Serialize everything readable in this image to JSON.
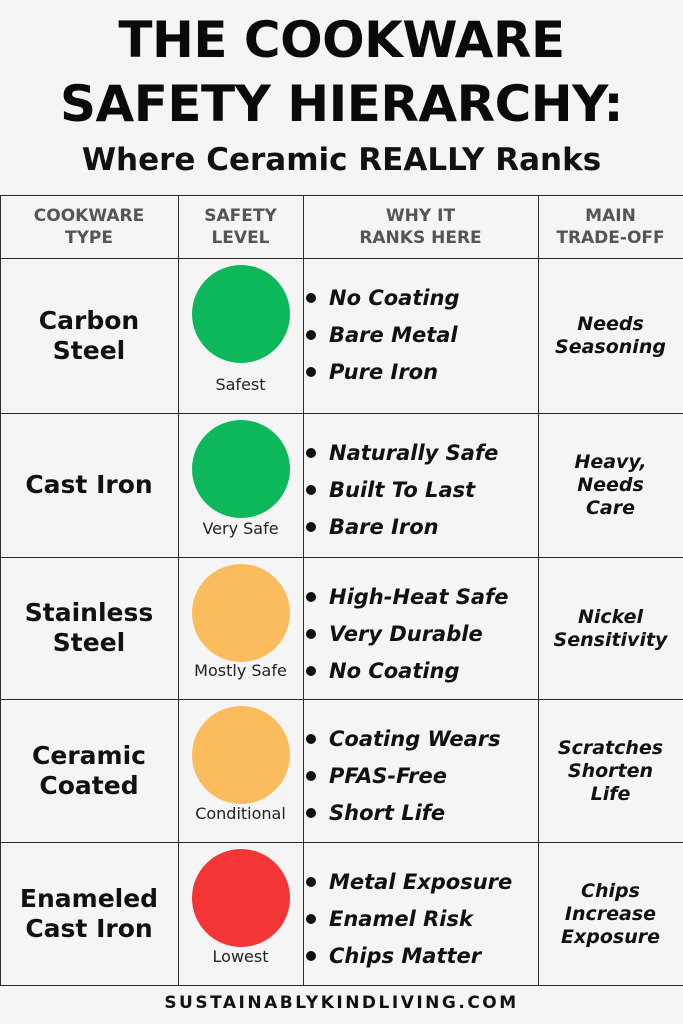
{
  "title": [
    "THE COOKWARE",
    "SAFETY HIERARCHY:"
  ],
  "subtitle": "Where Ceramic REALLY Ranks",
  "table": {
    "headers": [
      [
        "COOKWARE",
        "TYPE"
      ],
      [
        "SAFETY",
        "LEVEL"
      ],
      [
        "WHY IT",
        "RANKS HERE"
      ],
      [
        "MAIN",
        "TRADE-OFF"
      ]
    ],
    "rows": [
      {
        "type": [
          "Carbon",
          "Steel"
        ],
        "level": "Safest",
        "color": "#0db85b",
        "reasons": [
          "No Coating",
          "Bare Metal",
          "Pure Iron"
        ],
        "tradeoff": [
          "Needs",
          "Seasoning"
        ]
      },
      {
        "type": [
          "Cast Iron"
        ],
        "level": "Very Safe",
        "color": "#0db85b",
        "reasons": [
          "Naturally Safe",
          "Built To Last",
          "Bare Iron"
        ],
        "tradeoff": [
          "Heavy,",
          "Needs",
          "Care"
        ]
      },
      {
        "type": [
          "Stainless",
          "Steel"
        ],
        "level": "Mostly Safe",
        "color": "#fbbc5e",
        "reasons": [
          "High-Heat Safe",
          "Very Durable",
          "No Coating"
        ],
        "tradeoff": [
          "Nickel",
          "Sensitivity"
        ]
      },
      {
        "type": [
          "Ceramic",
          "Coated"
        ],
        "level": "Conditional",
        "color": "#fbbc5e",
        "reasons": [
          "Coating Wears",
          "PFAS-Free",
          "Short Life"
        ],
        "tradeoff": [
          "Scratches",
          "Shorten",
          "Life"
        ]
      },
      {
        "type": [
          "Enameled",
          "Cast Iron"
        ],
        "level": "Lowest",
        "color": "#f43537",
        "reasons": [
          "Metal Exposure",
          "Enamel Risk",
          "Chips Matter"
        ],
        "tradeoff": [
          "Chips",
          "Increase",
          "Exposure"
        ]
      }
    ]
  },
  "footer": "SUSTAINABLYKINDLIVING.COM"
}
